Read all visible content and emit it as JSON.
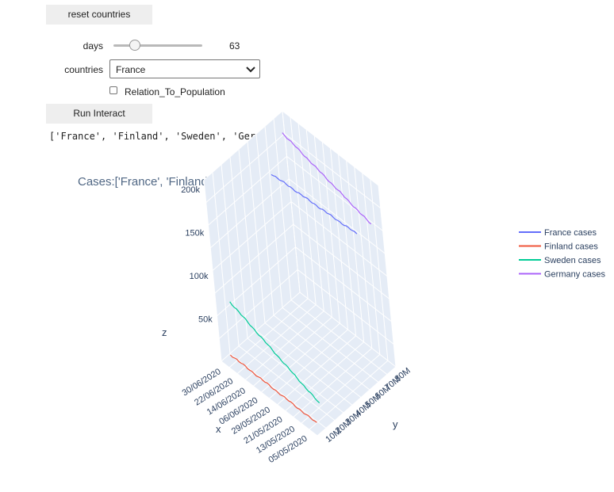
{
  "controls": {
    "reset_label": "reset countries",
    "days_label": "days",
    "days_value": "63",
    "days_fraction": 0.2,
    "countries_label": "countries",
    "countries_value": "France",
    "checkbox_label": "Relation_To_Population",
    "checkbox_checked": false,
    "run_label": "Run Interact"
  },
  "output": {
    "text": "['France', 'Finland', 'Sweden', 'Germany']"
  },
  "chart_data": {
    "type": "line",
    "title": "Cases:['France', 'Finland', 'Sweden', 'Germany']",
    "xlabel": "x",
    "ylabel": "y",
    "zlabel": "z",
    "x_ticks": [
      "05/05/2020",
      "13/05/2020",
      "21/05/2020",
      "29/05/2020",
      "06/06/2020",
      "14/06/2020",
      "22/06/2020",
      "30/06/2020"
    ],
    "y_ticks": [
      "10M",
      "20M",
      "30M",
      "40M",
      "50M",
      "60M",
      "70M",
      "80M"
    ],
    "z_ticks": [
      "50k",
      "100k",
      "150k",
      "200k"
    ],
    "series": [
      {
        "name": "France cases",
        "color": "#636efa",
        "y_population": 67000000,
        "z_start": 170000,
        "z_end": 162000
      },
      {
        "name": "Finland cases",
        "color": "#ef553b",
        "y_population": 5500000,
        "z_start": 5500,
        "z_end": 7200
      },
      {
        "name": "Sweden cases",
        "color": "#00cc96",
        "y_population": 10300000,
        "z_start": 24000,
        "z_end": 64000
      },
      {
        "name": "Germany cases",
        "color": "#ab63fa",
        "y_population": 83000000,
        "z_start": 167000,
        "z_end": 195000
      }
    ],
    "legend_position": "top-right"
  }
}
